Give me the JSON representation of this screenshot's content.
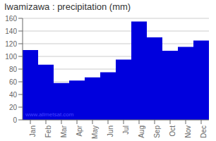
{
  "chart_data": {
    "type": "bar",
    "title": "Iwamizawa : precipitation (mm)",
    "categories": [
      "Jan",
      "Feb",
      "Mar",
      "Apr",
      "May",
      "Jun",
      "Jul",
      "Aug",
      "Sep",
      "Oct",
      "Nov",
      "Dec"
    ],
    "values": [
      110,
      87,
      58,
      62,
      67,
      75,
      95,
      155,
      130,
      109,
      115,
      125
    ],
    "color": "#0000dd",
    "ylim": [
      0,
      160
    ],
    "yticks": [
      0,
      20,
      40,
      60,
      80,
      100,
      120,
      140,
      160
    ],
    "grid": true,
    "annotations": [
      "www.allmetsat.com"
    ]
  }
}
